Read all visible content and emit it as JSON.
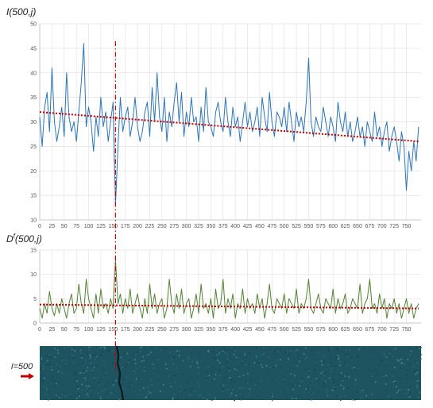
{
  "colors": {
    "top_line": "#2e75b6",
    "bottom_line": "#548235",
    "trend": "#c00000",
    "marker": "#c00000",
    "grid": "#e3e3e3",
    "axis": "#bbbbbb",
    "texture_base": "#1e5460"
  },
  "marker_x": 155,
  "chart_data": [
    {
      "type": "line",
      "title": "",
      "ylabel": "I(500,j)",
      "xlabel": "",
      "xlim": [
        0,
        780
      ],
      "ylim": [
        10,
        50
      ],
      "x_ticks": [
        0,
        25,
        50,
        75,
        100,
        125,
        150,
        175,
        200,
        225,
        250,
        275,
        300,
        325,
        350,
        375,
        400,
        425,
        450,
        475,
        500,
        525,
        550,
        575,
        600,
        625,
        650,
        675,
        700,
        725,
        750
      ],
      "y_ticks": [
        10,
        15,
        20,
        25,
        30,
        35,
        40,
        45,
        50
      ],
      "grid": true,
      "trend": {
        "x": [
          0,
          775
        ],
        "y": [
          32,
          26
        ]
      },
      "series": [
        {
          "x": [
            0,
            5,
            10,
            15,
            20,
            25,
            30,
            35,
            40,
            45,
            50,
            55,
            60,
            65,
            70,
            75,
            80,
            85,
            90,
            95,
            100,
            105,
            110,
            115,
            120,
            125,
            130,
            135,
            140,
            145,
            150,
            155,
            160,
            165,
            170,
            175,
            180,
            185,
            190,
            195,
            200,
            205,
            210,
            215,
            220,
            225,
            230,
            235,
            240,
            245,
            250,
            255,
            260,
            265,
            270,
            275,
            280,
            285,
            290,
            295,
            300,
            305,
            310,
            315,
            320,
            325,
            330,
            335,
            340,
            345,
            350,
            355,
            360,
            365,
            370,
            375,
            380,
            385,
            390,
            395,
            400,
            405,
            410,
            415,
            420,
            425,
            430,
            435,
            440,
            445,
            450,
            455,
            460,
            465,
            470,
            475,
            480,
            485,
            490,
            495,
            500,
            505,
            510,
            515,
            520,
            525,
            530,
            535,
            540,
            545,
            550,
            555,
            560,
            565,
            570,
            575,
            580,
            585,
            590,
            595,
            600,
            605,
            610,
            615,
            620,
            625,
            630,
            635,
            640,
            645,
            650,
            655,
            660,
            665,
            670,
            675,
            680,
            685,
            690,
            695,
            700,
            705,
            710,
            715,
            720,
            725,
            730,
            735,
            740,
            745,
            750,
            755,
            760,
            765,
            770,
            775
          ],
          "values": [
            31,
            25,
            33,
            36,
            28,
            41,
            30,
            26,
            29,
            33,
            27,
            40,
            31,
            28,
            30,
            26,
            32,
            38,
            46,
            29,
            33,
            30,
            24,
            31,
            27,
            35,
            29,
            32,
            26,
            30,
            34,
            13,
            25,
            35,
            28,
            31,
            33,
            27,
            30,
            35,
            29,
            26,
            28,
            32,
            34,
            27,
            37,
            30,
            40,
            31,
            28,
            35,
            26,
            32,
            29,
            34,
            38,
            30,
            36,
            27,
            32,
            29,
            35,
            30,
            31,
            26,
            33,
            28,
            37,
            30,
            29,
            27,
            32,
            34,
            30,
            28,
            35,
            30,
            27,
            33,
            29,
            31,
            26,
            30,
            34,
            29,
            32,
            28,
            30,
            33,
            27,
            35,
            31,
            28,
            36,
            30,
            27,
            32,
            31,
            29,
            33,
            28,
            34,
            30,
            26,
            32,
            29,
            31,
            28,
            34,
            43,
            30,
            27,
            31,
            29,
            28,
            33,
            30,
            27,
            31,
            29,
            26,
            34,
            30,
            28,
            32,
            27,
            30,
            26,
            28,
            31,
            27,
            29,
            25,
            30,
            28,
            26,
            32,
            27,
            29,
            25,
            28,
            30,
            24,
            27,
            29,
            26,
            22,
            28,
            25,
            16,
            24,
            20,
            26,
            22,
            29
          ]
        }
      ]
    },
    {
      "type": "line",
      "title": "",
      "ylabel": "D^f(500,j)",
      "xlabel": "",
      "xlim": [
        0,
        780
      ],
      "ylim": [
        0,
        15
      ],
      "x_ticks": [
        0,
        25,
        50,
        75,
        100,
        125,
        150,
        175,
        200,
        225,
        250,
        275,
        300,
        325,
        350,
        375,
        400,
        425,
        450,
        475,
        500,
        525,
        550,
        575,
        600,
        625,
        650,
        675,
        700,
        725,
        750
      ],
      "y_ticks": [
        0,
        5,
        10,
        15
      ],
      "grid": true,
      "trend": {
        "x": [
          0,
          775
        ],
        "y": [
          3.8,
          3.0
        ]
      },
      "series": [
        {
          "x": [
            0,
            5,
            10,
            15,
            20,
            25,
            30,
            35,
            40,
            45,
            50,
            55,
            60,
            65,
            70,
            75,
            80,
            85,
            90,
            95,
            100,
            105,
            110,
            115,
            120,
            125,
            130,
            135,
            140,
            145,
            150,
            155,
            160,
            165,
            170,
            175,
            180,
            185,
            190,
            195,
            200,
            205,
            210,
            215,
            220,
            225,
            230,
            235,
            240,
            245,
            250,
            255,
            260,
            265,
            270,
            275,
            280,
            285,
            290,
            295,
            300,
            305,
            310,
            315,
            320,
            325,
            330,
            335,
            340,
            345,
            350,
            355,
            360,
            365,
            370,
            375,
            380,
            385,
            390,
            395,
            400,
            405,
            410,
            415,
            420,
            425,
            430,
            435,
            440,
            445,
            450,
            455,
            460,
            465,
            470,
            475,
            480,
            485,
            490,
            495,
            500,
            505,
            510,
            515,
            520,
            525,
            530,
            535,
            540,
            545,
            550,
            555,
            560,
            565,
            570,
            575,
            580,
            585,
            590,
            595,
            600,
            605,
            610,
            615,
            620,
            625,
            630,
            635,
            640,
            645,
            650,
            655,
            660,
            665,
            670,
            675,
            680,
            685,
            690,
            695,
            700,
            705,
            710,
            715,
            720,
            725,
            730,
            735,
            740,
            745,
            750,
            755,
            760,
            765,
            770,
            775
          ],
          "values": [
            3,
            1,
            4,
            2,
            6.5,
            3,
            1.5,
            4,
            2,
            5,
            3,
            1,
            4,
            6,
            2,
            3,
            8,
            4,
            2,
            9,
            5,
            3,
            1,
            6,
            2,
            7,
            3,
            4,
            2,
            5,
            3,
            13,
            4,
            6,
            2,
            5,
            3,
            7,
            2,
            4,
            6,
            3,
            1,
            5,
            2,
            8,
            3,
            6,
            2,
            4,
            5,
            1,
            3,
            9,
            4,
            2,
            6,
            3,
            7,
            2,
            4,
            5,
            1,
            3,
            6,
            2,
            8,
            3,
            4,
            2,
            5,
            1,
            7,
            3,
            4,
            9,
            2,
            5,
            3,
            6,
            1,
            4,
            3,
            7,
            2,
            5,
            3,
            4,
            2,
            6,
            3,
            5,
            1,
            4,
            8,
            3,
            2,
            5,
            4,
            3,
            6,
            2,
            5,
            4,
            3,
            7,
            2,
            4,
            3,
            5,
            9,
            3,
            2,
            4,
            6,
            3,
            2,
            5,
            4,
            3,
            7,
            2,
            5,
            3,
            4,
            6,
            2,
            3,
            5,
            4,
            3,
            8,
            2,
            4,
            5,
            9,
            3,
            4,
            2,
            6,
            3,
            5,
            1,
            4,
            3,
            5,
            2,
            4,
            1,
            3,
            5,
            2,
            4,
            1,
            3,
            4
          ]
        }
      ]
    }
  ],
  "strip": {
    "label": "i=500"
  }
}
